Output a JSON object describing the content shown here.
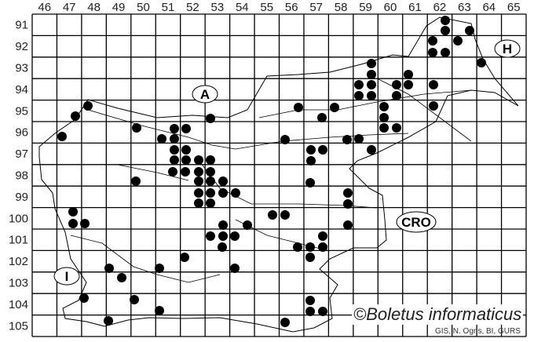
{
  "map": {
    "column_labels": [
      "46",
      "47",
      "48",
      "49",
      "50",
      "51",
      "52",
      "53",
      "54",
      "55",
      "56",
      "57",
      "58",
      "59",
      "60",
      "61",
      "62",
      "63",
      "64",
      "65"
    ],
    "row_labels": [
      "91",
      "92",
      "93",
      "94",
      "95",
      "96",
      "97",
      "98",
      "99",
      "100",
      "101",
      "102",
      "103",
      "104",
      "105"
    ],
    "country_labels": {
      "austria": "A",
      "hungary": "H",
      "italy": "I",
      "croatia": "CRO"
    },
    "copyright": "©Boletus informaticus",
    "credit": "GIS, N. Ogris, BI, GURS",
    "colors": {
      "dots": "#000000",
      "grid": "#000000",
      "background": "#ffffff"
    }
  }
}
